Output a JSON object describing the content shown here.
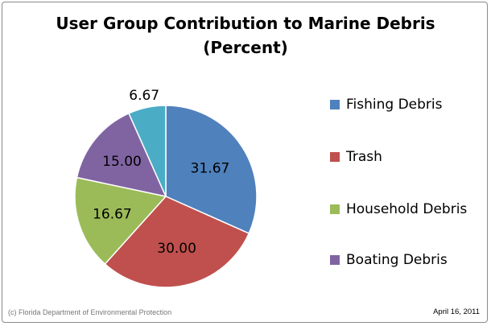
{
  "chart_data": {
    "type": "pie",
    "title": [
      "User Group Contribution to Marine Debris",
      "(Percent)"
    ],
    "slices": [
      {
        "name": "Fishing Debris",
        "value": 31.67,
        "label": "31.67",
        "color": "#4F81BD"
      },
      {
        "name": "Trash",
        "value": 30.0,
        "label": "30.00",
        "color": "#C0504D"
      },
      {
        "name": "Household Debris",
        "value": 16.67,
        "label": "16.67",
        "color": "#9BBB59"
      },
      {
        "name": "Boating Debris",
        "value": 15.0,
        "label": "15.00",
        "color": "#8064A2"
      },
      {
        "name": "",
        "value": 6.67,
        "label": "6.67",
        "color": "#4BACC6"
      }
    ],
    "legend_position": "right"
  },
  "footer": {
    "copyright": "(c) Florida Department of Environmental Protection",
    "date": "April 16, 2011"
  }
}
